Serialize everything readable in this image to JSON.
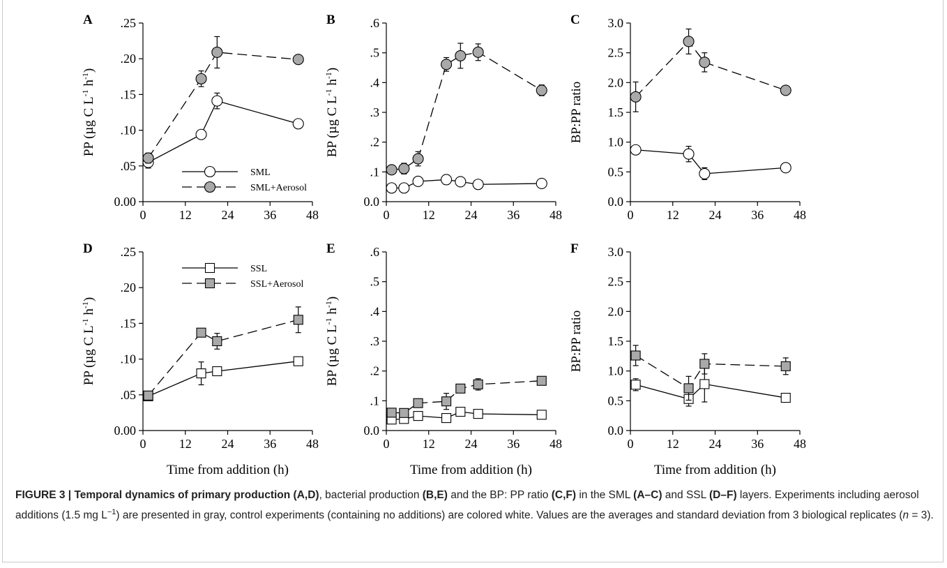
{
  "caption": {
    "label": "FIGURE 3 |",
    "segments": [
      {
        "t": "Temporal dynamics of primary production ",
        "b": true
      },
      {
        "t": "(A,D)",
        "b": true
      },
      {
        "t": ", bacterial production ",
        "b": false
      },
      {
        "t": "(B,E)",
        "b": true
      },
      {
        "t": " and the BP: PP ratio ",
        "b": false
      },
      {
        "t": "(C,F)",
        "b": true
      },
      {
        "t": " in the SML ",
        "b": false
      },
      {
        "t": "(A–C)",
        "b": true
      },
      {
        "t": " and SSL ",
        "b": false
      },
      {
        "t": "(D–F)",
        "b": true
      },
      {
        "t": " layers. Experiments including aerosol additions (1.5 mg L",
        "b": false
      },
      {
        "t": "−1",
        "b": false,
        "sup": true
      },
      {
        "t": ") are presented in gray, control experiments (containing no additions) are colored white. Values are the averages and standard deviation from 3 biological replicates (",
        "b": false
      },
      {
        "t": "n",
        "b": false,
        "i": true
      },
      {
        "t": " = 3).",
        "b": false
      }
    ]
  },
  "colors": {
    "filled": "#a9a9a9",
    "open": "#ffffff",
    "stroke": "#000000"
  },
  "chart_data": [
    {
      "type": "scatter",
      "panel": "A",
      "ylabel": "PP (µg C L-1 h-1)",
      "xlabel": "",
      "xlim": [
        0,
        48
      ],
      "xticks": [
        "0",
        "12",
        "24",
        "36",
        "48"
      ],
      "ylim": [
        0,
        0.25
      ],
      "yticks": [
        "0.00",
        ".05",
        ".10",
        ".15",
        ".20",
        ".25"
      ],
      "legend": {
        "position": "bottom-right",
        "entries": [
          "SML",
          "SML+Aerosol"
        ]
      },
      "series": [
        {
          "name": "SML",
          "marker": "circle",
          "fill": "open",
          "dash": false,
          "x": [
            1.5,
            16.5,
            21,
            44
          ],
          "y": [
            0.055,
            0.094,
            0.141,
            0.109
          ],
          "err": [
            0.008,
            0.004,
            0.011,
            0.005
          ]
        },
        {
          "name": "SML+Aerosol",
          "marker": "circle",
          "fill": "filled",
          "dash": true,
          "x": [
            1.5,
            16.5,
            21,
            44
          ],
          "y": [
            0.061,
            0.172,
            0.209,
            0.199
          ],
          "err": [
            0.007,
            0.011,
            0.022,
            0.003
          ]
        }
      ]
    },
    {
      "type": "scatter",
      "panel": "B",
      "ylabel": "BP (µg C L-1 h-1)",
      "xlabel": "",
      "xlim": [
        0,
        48
      ],
      "xticks": [
        "0",
        "12",
        "24",
        "36",
        "48"
      ],
      "ylim": [
        0,
        0.6
      ],
      "yticks": [
        "0.0",
        ".1",
        ".2",
        ".3",
        ".4",
        ".5",
        ".6"
      ],
      "series": [
        {
          "name": "SML",
          "marker": "circle",
          "fill": "open",
          "dash": false,
          "x": [
            1.5,
            5,
            9,
            17,
            21,
            26,
            44
          ],
          "y": [
            0.046,
            0.046,
            0.068,
            0.074,
            0.067,
            0.058,
            0.061
          ],
          "err": [
            0.004,
            0.004,
            0.014,
            0.016,
            0.005,
            0.003,
            0.003
          ]
        },
        {
          "name": "SML+Aerosol",
          "marker": "circle",
          "fill": "filled",
          "dash": true,
          "x": [
            1.5,
            5,
            9,
            17,
            21,
            26,
            44
          ],
          "y": [
            0.107,
            0.111,
            0.144,
            0.461,
            0.49,
            0.502,
            0.374
          ],
          "err": [
            0.008,
            0.018,
            0.024,
            0.023,
            0.042,
            0.028,
            0.018
          ]
        }
      ]
    },
    {
      "type": "scatter",
      "panel": "C",
      "ylabel": "BP:PP ratio",
      "xlabel": "",
      "xlim": [
        0,
        48
      ],
      "xticks": [
        "0",
        "12",
        "24",
        "36",
        "48"
      ],
      "ylim": [
        0,
        3
      ],
      "yticks": [
        "0.0",
        "0.5",
        "1.0",
        "1.5",
        "2.0",
        "2.5",
        "3.0"
      ],
      "series": [
        {
          "name": "SML",
          "marker": "circle",
          "fill": "open",
          "dash": false,
          "x": [
            1.5,
            16.5,
            21,
            44
          ],
          "y": [
            0.87,
            0.8,
            0.47,
            0.57
          ],
          "err": [
            0.04,
            0.13,
            0.1,
            0.03
          ]
        },
        {
          "name": "SML+Aerosol",
          "marker": "circle",
          "fill": "filled",
          "dash": true,
          "x": [
            1.5,
            16.5,
            21,
            44
          ],
          "y": [
            1.76,
            2.69,
            2.34,
            1.87
          ],
          "err": [
            0.25,
            0.21,
            0.16,
            0.05
          ]
        }
      ]
    },
    {
      "type": "scatter",
      "panel": "D",
      "ylabel": "PP (µg C L-1 h-1)",
      "xlabel": "Time from addition (h)",
      "xlim": [
        0,
        48
      ],
      "xticks": [
        "0",
        "12",
        "24",
        "36",
        "48"
      ],
      "ylim": [
        0,
        0.25
      ],
      "yticks": [
        "0.00",
        ".05",
        ".10",
        ".15",
        ".20",
        ".25"
      ],
      "legend": {
        "position": "top-left",
        "entries": [
          "SSL",
          "SSL+Aerosol"
        ]
      },
      "series": [
        {
          "name": "SSL",
          "marker": "square",
          "fill": "open",
          "dash": false,
          "x": [
            1.5,
            16.5,
            21,
            44
          ],
          "y": [
            0.048,
            0.08,
            0.083,
            0.097
          ],
          "err": [
            0.003,
            0.016,
            0.003,
            0.003
          ]
        },
        {
          "name": "SSL+Aerosol",
          "marker": "square",
          "fill": "filled",
          "dash": true,
          "x": [
            1.5,
            16.5,
            21,
            44
          ],
          "y": [
            0.049,
            0.137,
            0.125,
            0.155
          ],
          "err": [
            0.003,
            0.004,
            0.011,
            0.018
          ]
        }
      ]
    },
    {
      "type": "scatter",
      "panel": "E",
      "ylabel": "BP (µg C L-1 h-1)",
      "xlabel": "Time from addition (h)",
      "xlim": [
        0,
        48
      ],
      "xticks": [
        "0",
        "12",
        "24",
        "36",
        "48"
      ],
      "ylim": [
        0,
        0.6
      ],
      "yticks": [
        "0.0",
        ".1",
        ".2",
        ".3",
        ".4",
        ".5",
        ".6"
      ],
      "series": [
        {
          "name": "SSL",
          "marker": "square",
          "fill": "open",
          "dash": false,
          "x": [
            1.5,
            5,
            9,
            17,
            21,
            26,
            44
          ],
          "y": [
            0.037,
            0.039,
            0.049,
            0.042,
            0.063,
            0.056,
            0.053
          ],
          "err": [
            0.005,
            0.003,
            0.003,
            0.003,
            0.008,
            0.004,
            0.003
          ]
        },
        {
          "name": "SSL+Aerosol",
          "marker": "square",
          "fill": "filled",
          "dash": true,
          "x": [
            1.5,
            5,
            9,
            17,
            21,
            26,
            44
          ],
          "y": [
            0.06,
            0.059,
            0.092,
            0.098,
            0.141,
            0.155,
            0.167
          ],
          "err": [
            0.012,
            0.004,
            0.005,
            0.027,
            0.005,
            0.019,
            0.012
          ]
        }
      ]
    },
    {
      "type": "scatter",
      "panel": "F",
      "ylabel": "BP:PP ratio",
      "xlabel": "Time from addition (h)",
      "xlim": [
        0,
        48
      ],
      "xticks": [
        "0",
        "12",
        "24",
        "36",
        "48"
      ],
      "ylim": [
        0,
        3
      ],
      "yticks": [
        "0.0",
        "0.5",
        "1.0",
        "1.5",
        "2.0",
        "2.5",
        "3.0"
      ],
      "series": [
        {
          "name": "SSL",
          "marker": "square",
          "fill": "open",
          "dash": false,
          "x": [
            1.5,
            16.5,
            21,
            44
          ],
          "y": [
            0.77,
            0.53,
            0.78,
            0.55
          ],
          "err": [
            0.1,
            0.12,
            0.3,
            0.04
          ]
        },
        {
          "name": "SSL+Aerosol",
          "marker": "square",
          "fill": "filled",
          "dash": true,
          "x": [
            1.5,
            16.5,
            21,
            44
          ],
          "y": [
            1.26,
            0.71,
            1.12,
            1.08
          ],
          "err": [
            0.17,
            0.2,
            0.17,
            0.14
          ]
        }
      ]
    }
  ]
}
